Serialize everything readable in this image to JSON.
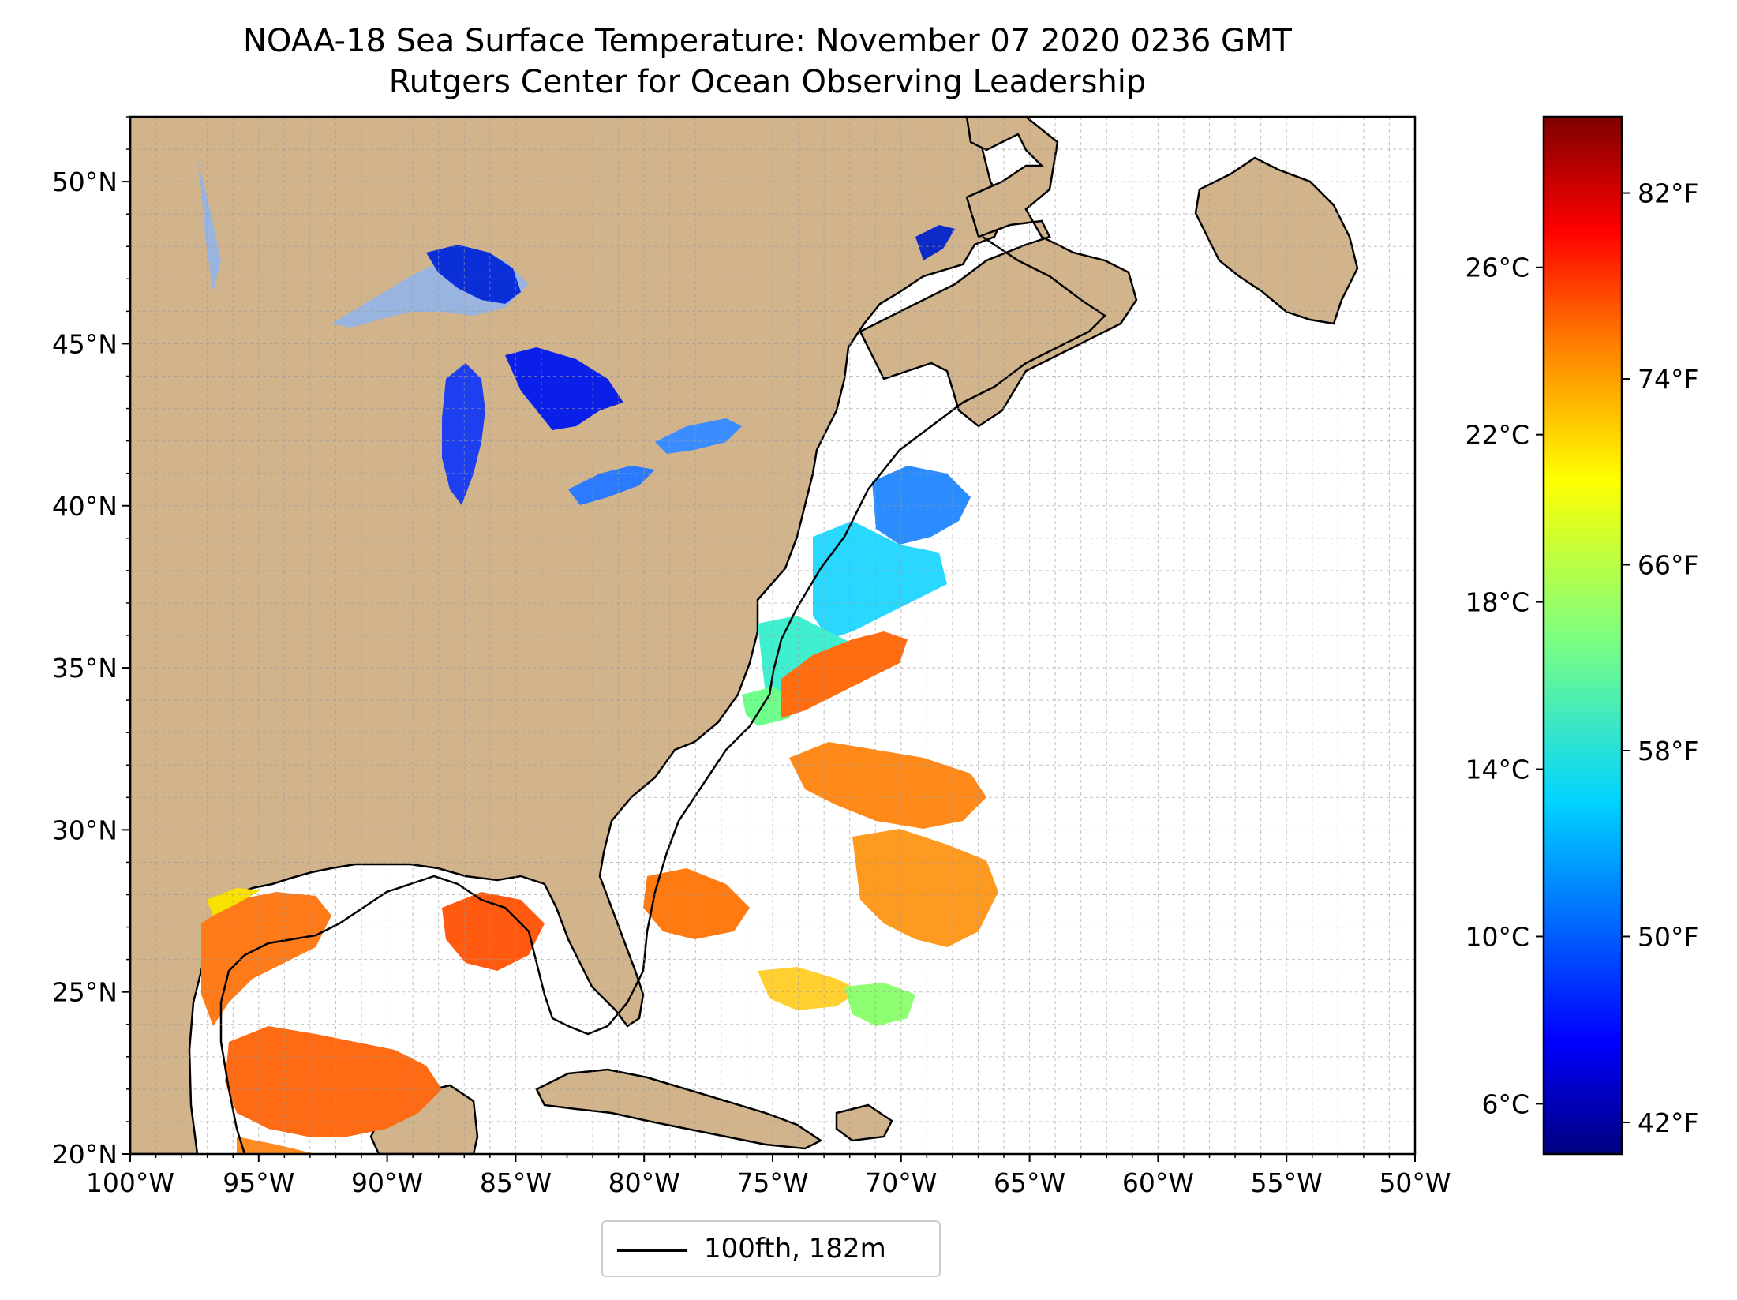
{
  "title": "NOAA-18 Sea Surface Temperature: November 07 2020 0236 GMT",
  "subtitle": "Rutgers Center for Ocean Observing Leadership",
  "map": {
    "region": "US East Coast and Gulf of Mexico",
    "lon_range": [
      -100,
      -50
    ],
    "lat_range": [
      20,
      52
    ],
    "land_color": "#d2b48c",
    "lake_no_data_color": "#9ab4e0",
    "graticule_step_deg": 1,
    "lon_ticks": [
      "100°W",
      "95°W",
      "90°W",
      "85°W",
      "80°W",
      "75°W",
      "70°W",
      "65°W",
      "60°W",
      "55°W",
      "50°W"
    ],
    "lat_ticks": [
      "20°N",
      "25°N",
      "30°N",
      "35°N",
      "40°N",
      "45°N",
      "50°N"
    ]
  },
  "colorbar": {
    "colormap": "jet",
    "colors": [
      "#00007f",
      "#0000ff",
      "#007fff",
      "#00ffff",
      "#7fff7f",
      "#ffff00",
      "#ff7f00",
      "#ff0000",
      "#7f0000"
    ],
    "celsius_ticks": [
      "6°C",
      "10°C",
      "14°C",
      "18°C",
      "22°C",
      "26°C"
    ],
    "fahrenheit_ticks": [
      "42°F",
      "50°F",
      "58°F",
      "66°F",
      "74°F",
      "82°F"
    ]
  },
  "legend": {
    "label": "100fth, 182m",
    "line_color": "#000000"
  }
}
